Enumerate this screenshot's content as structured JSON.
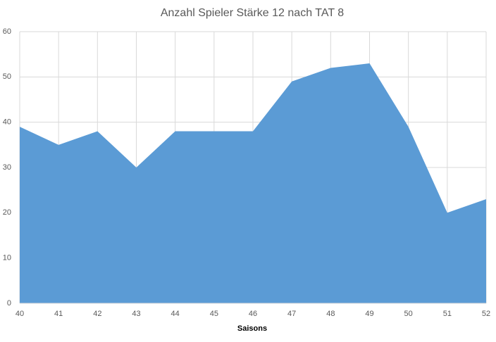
{
  "chart_data": {
    "type": "area",
    "title": "Anzahl Spieler Stärke 12 nach TAT 8",
    "x_label": "Saisons",
    "x": [
      40,
      41,
      42,
      43,
      44,
      45,
      46,
      47,
      48,
      49,
      50,
      51,
      52
    ],
    "values": [
      39,
      35,
      38,
      30,
      38,
      38,
      38,
      49,
      52,
      53,
      39,
      20,
      23
    ],
    "color": "#5b9bd5",
    "xlim": [
      40,
      52
    ],
    "xticks": [
      40,
      41,
      42,
      43,
      44,
      45,
      46,
      47,
      48,
      49,
      50,
      51,
      52
    ],
    "ylim": [
      0,
      60
    ],
    "yticks": [
      0,
      10,
      20,
      30,
      40,
      50,
      60
    ],
    "grid": true
  }
}
